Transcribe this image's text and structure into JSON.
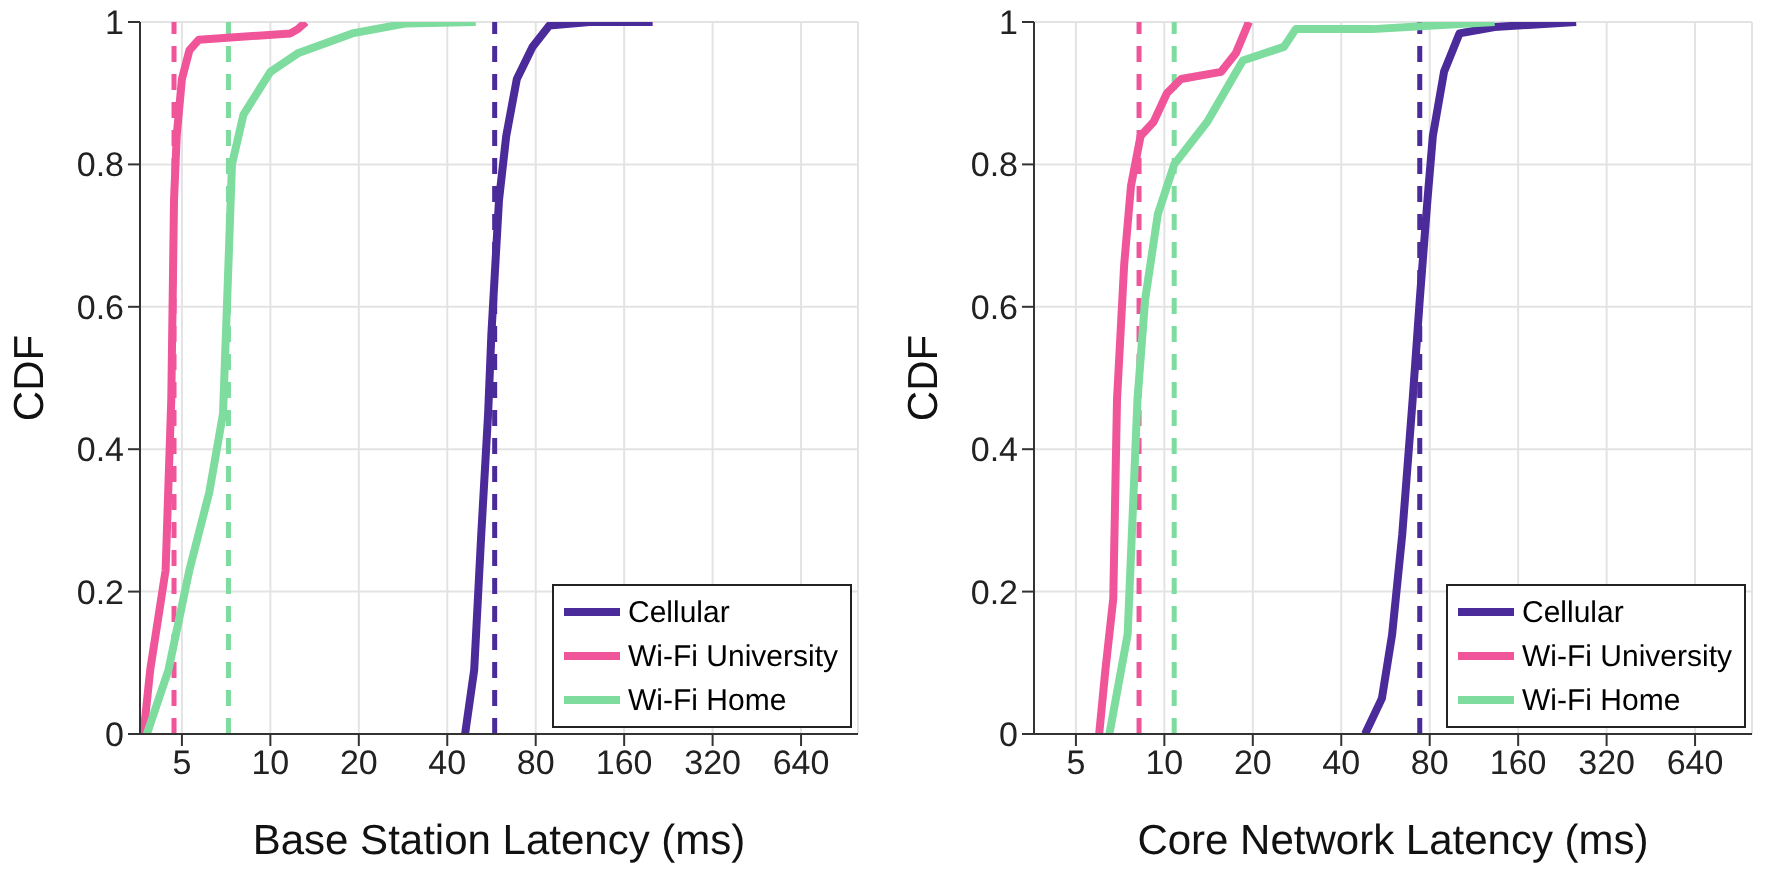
{
  "chart_data": [
    {
      "type": "line",
      "xlabel": "Base Station Latency (ms)",
      "ylabel": "CDF",
      "log": "x",
      "xlim": [
        3.6,
        1000
      ],
      "xticks": [
        5,
        10,
        20,
        40,
        80,
        160,
        320,
        640
      ],
      "ylim": [
        0,
        1
      ],
      "yticks": [
        0,
        0.2,
        0.4,
        0.6,
        0.8,
        1
      ],
      "grid": true,
      "legend": "bottom right",
      "line_style": "solid",
      "marker": "none",
      "series": [
        {
          "name": "Cellular",
          "color": "#4b2a9a",
          "x": [
            46,
            49.4,
            52.2,
            55.1,
            56.5,
            60,
            63.5,
            69,
            78,
            89,
            122,
            200
          ],
          "values": [
            0,
            0.09,
            0.28,
            0.45,
            0.56,
            0.75,
            0.84,
            0.92,
            0.965,
            0.995,
            1,
            1
          ]
        },
        {
          "name": "Wi-Fi University",
          "color": "#f0559a",
          "x": [
            3.7,
            3.9,
            4.4,
            4.6,
            4.7,
            4.8,
            5,
            5.3,
            5.7,
            11.7,
            12.4,
            13.2
          ],
          "values": [
            0,
            0.09,
            0.23,
            0.47,
            0.75,
            0.84,
            0.92,
            0.96,
            0.975,
            0.984,
            0.99,
            1
          ]
        },
        {
          "name": "Wi-Fi Home",
          "color": "#7ddc9e",
          "x": [
            3.8,
            4.5,
            5.3,
            6.2,
            6.9,
            7.2,
            7.4,
            8.1,
            10,
            12.4,
            19,
            29,
            50
          ],
          "values": [
            0,
            0.09,
            0.23,
            0.34,
            0.45,
            0.66,
            0.8,
            0.87,
            0.93,
            0.956,
            0.984,
            0.998,
            1
          ]
        }
      ],
      "ref_lines": [
        {
          "axis": "x",
          "value": 58,
          "color": "#4b2a9a",
          "line_style": "dashed"
        },
        {
          "axis": "x",
          "value": 4.7,
          "color": "#f0559a",
          "line_style": "dashed"
        },
        {
          "axis": "x",
          "value": 7.2,
          "color": "#7ddc9e",
          "line_style": "dashed"
        }
      ]
    },
    {
      "type": "line",
      "xlabel": "Core Network Latency (ms)",
      "ylabel": "CDF",
      "log": "x",
      "xlim": [
        3.6,
        1000
      ],
      "xticks": [
        5,
        10,
        20,
        40,
        80,
        160,
        320,
        640
      ],
      "ylim": [
        0,
        1
      ],
      "yticks": [
        0,
        0.2,
        0.4,
        0.6,
        0.8,
        1
      ],
      "grid": true,
      "legend": "bottom right",
      "line_style": "solid",
      "marker": "none",
      "series": [
        {
          "name": "Cellular",
          "color": "#4b2a9a",
          "x": [
            48.2,
            55,
            59.6,
            64.5,
            70,
            74,
            78.6,
            82,
            89.5,
            101,
            133,
            252
          ],
          "values": [
            0,
            0.05,
            0.14,
            0.28,
            0.47,
            0.61,
            0.75,
            0.84,
            0.93,
            0.984,
            0.993,
            1
          ]
        },
        {
          "name": "Wi-Fi University",
          "color": "#f0559a",
          "x": [
            6,
            6.3,
            6.7,
            6.9,
            7.3,
            7.7,
            8.3,
            9.2,
            10.2,
            11.4,
            15.6,
            17.5,
            19.4
          ],
          "values": [
            0,
            0.09,
            0.19,
            0.47,
            0.66,
            0.77,
            0.84,
            0.86,
            0.9,
            0.92,
            0.93,
            0.956,
            1
          ]
        },
        {
          "name": "Wi-Fi Home",
          "color": "#7ddc9e",
          "x": [
            6.5,
            7.5,
            8.1,
            8.6,
            9.5,
            10.8,
            14,
            18.5,
            25.5,
            28,
            51,
            133
          ],
          "values": [
            0,
            0.14,
            0.47,
            0.61,
            0.73,
            0.8,
            0.86,
            0.946,
            0.965,
            0.99,
            0.99,
            1
          ]
        }
      ],
      "ref_lines": [
        {
          "axis": "x",
          "value": 74,
          "color": "#4b2a9a",
          "line_style": "dashed"
        },
        {
          "axis": "x",
          "value": 8.2,
          "color": "#f0559a",
          "line_style": "dashed"
        },
        {
          "axis": "x",
          "value": 10.8,
          "color": "#7ddc9e",
          "line_style": "dashed"
        }
      ]
    }
  ]
}
